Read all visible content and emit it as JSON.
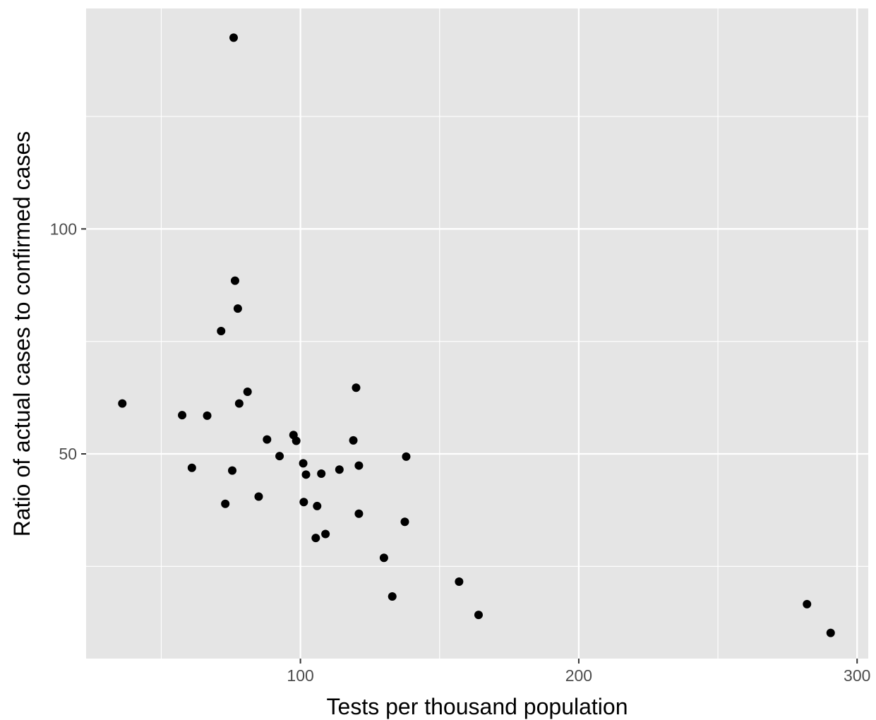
{
  "chart_data": {
    "type": "scatter",
    "title": "",
    "xlabel": "Tests per thousand population",
    "ylabel": "Ratio of actual cases to confirmed cases",
    "xlim": [
      23,
      304
    ],
    "ylim": [
      4.5,
      149
    ],
    "x_major_ticks": [
      100,
      200,
      300
    ],
    "x_minor_ticks": [
      50,
      150,
      250
    ],
    "y_major_ticks": [
      50,
      100
    ],
    "y_minor_ticks": [
      25,
      75,
      125
    ],
    "x_tick_labels": [
      "100",
      "200",
      "300"
    ],
    "y_tick_labels": [
      "50",
      "100"
    ],
    "grid": true,
    "legend": "none",
    "colors": {
      "panel": "#e5e5e5",
      "grid": "#ffffff",
      "point": "#000000"
    },
    "points": [
      {
        "x": 76,
        "y": 142.5
      },
      {
        "x": 36,
        "y": 61.2
      },
      {
        "x": 57.5,
        "y": 58.6
      },
      {
        "x": 66.5,
        "y": 58.5
      },
      {
        "x": 61,
        "y": 46.9
      },
      {
        "x": 71.5,
        "y": 77.3
      },
      {
        "x": 73,
        "y": 38.9
      },
      {
        "x": 75.5,
        "y": 46.3
      },
      {
        "x": 76.5,
        "y": 88.5
      },
      {
        "x": 77.5,
        "y": 82.3
      },
      {
        "x": 78,
        "y": 61.2
      },
      {
        "x": 81,
        "y": 63.8
      },
      {
        "x": 85,
        "y": 40.5
      },
      {
        "x": 88,
        "y": 53.2
      },
      {
        "x": 92.5,
        "y": 49.5
      },
      {
        "x": 97.5,
        "y": 54.2
      },
      {
        "x": 98.5,
        "y": 52.9
      },
      {
        "x": 101,
        "y": 47.9
      },
      {
        "x": 101.2,
        "y": 39.3
      },
      {
        "x": 102,
        "y": 45.4
      },
      {
        "x": 106,
        "y": 38.4
      },
      {
        "x": 105.5,
        "y": 31.3
      },
      {
        "x": 107.5,
        "y": 45.6
      },
      {
        "x": 109,
        "y": 32.2
      },
      {
        "x": 114,
        "y": 46.5
      },
      {
        "x": 119,
        "y": 53.0
      },
      {
        "x": 120,
        "y": 64.7
      },
      {
        "x": 121,
        "y": 47.4
      },
      {
        "x": 121,
        "y": 36.7
      },
      {
        "x": 130,
        "y": 26.9
      },
      {
        "x": 133,
        "y": 18.3
      },
      {
        "x": 137.5,
        "y": 34.9
      },
      {
        "x": 138,
        "y": 49.4
      },
      {
        "x": 157,
        "y": 21.6
      },
      {
        "x": 164,
        "y": 14.2
      },
      {
        "x": 282,
        "y": 16.6
      },
      {
        "x": 290.5,
        "y": 10.2
      }
    ]
  }
}
